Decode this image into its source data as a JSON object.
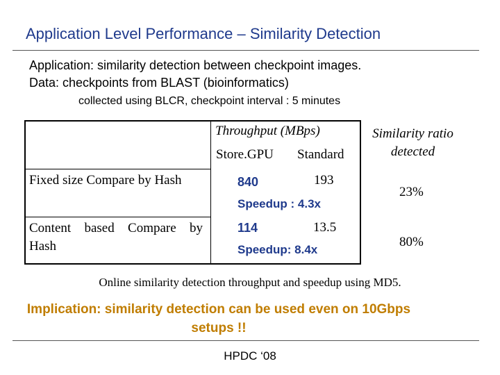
{
  "title": "Application Level Performance – Similarity Detection",
  "bullets": [
    "Application: similarity detection between checkpoint images.",
    "Data: checkpoints from BLAST (bioinformatics)"
  ],
  "sub_bullet": "collected using BLCR, checkpoint interval : 5 minutes",
  "table": {
    "header": {
      "throughput": "Throughput (MBps)",
      "store_gpu": "Store.GPU",
      "standard": "Standard",
      "similarity": "Similarity ratio detected"
    },
    "rows": [
      {
        "label": "Fixed size Compare by Hash",
        "store_gpu": "840",
        "standard": "193",
        "speedup": "Speedup : 4.3x",
        "ratio": "23%"
      },
      {
        "label": "Content based Compare by Hash",
        "store_gpu": "114",
        "standard": "13.5",
        "speedup": "Speedup: 8.4x",
        "ratio": "80%"
      }
    ]
  },
  "caption": "Online similarity detection throughput and speedup using MD5.",
  "implication": "Implication: similarity detection can be used even on 10Gbps setups !!",
  "footer": "HPDC ‘08"
}
